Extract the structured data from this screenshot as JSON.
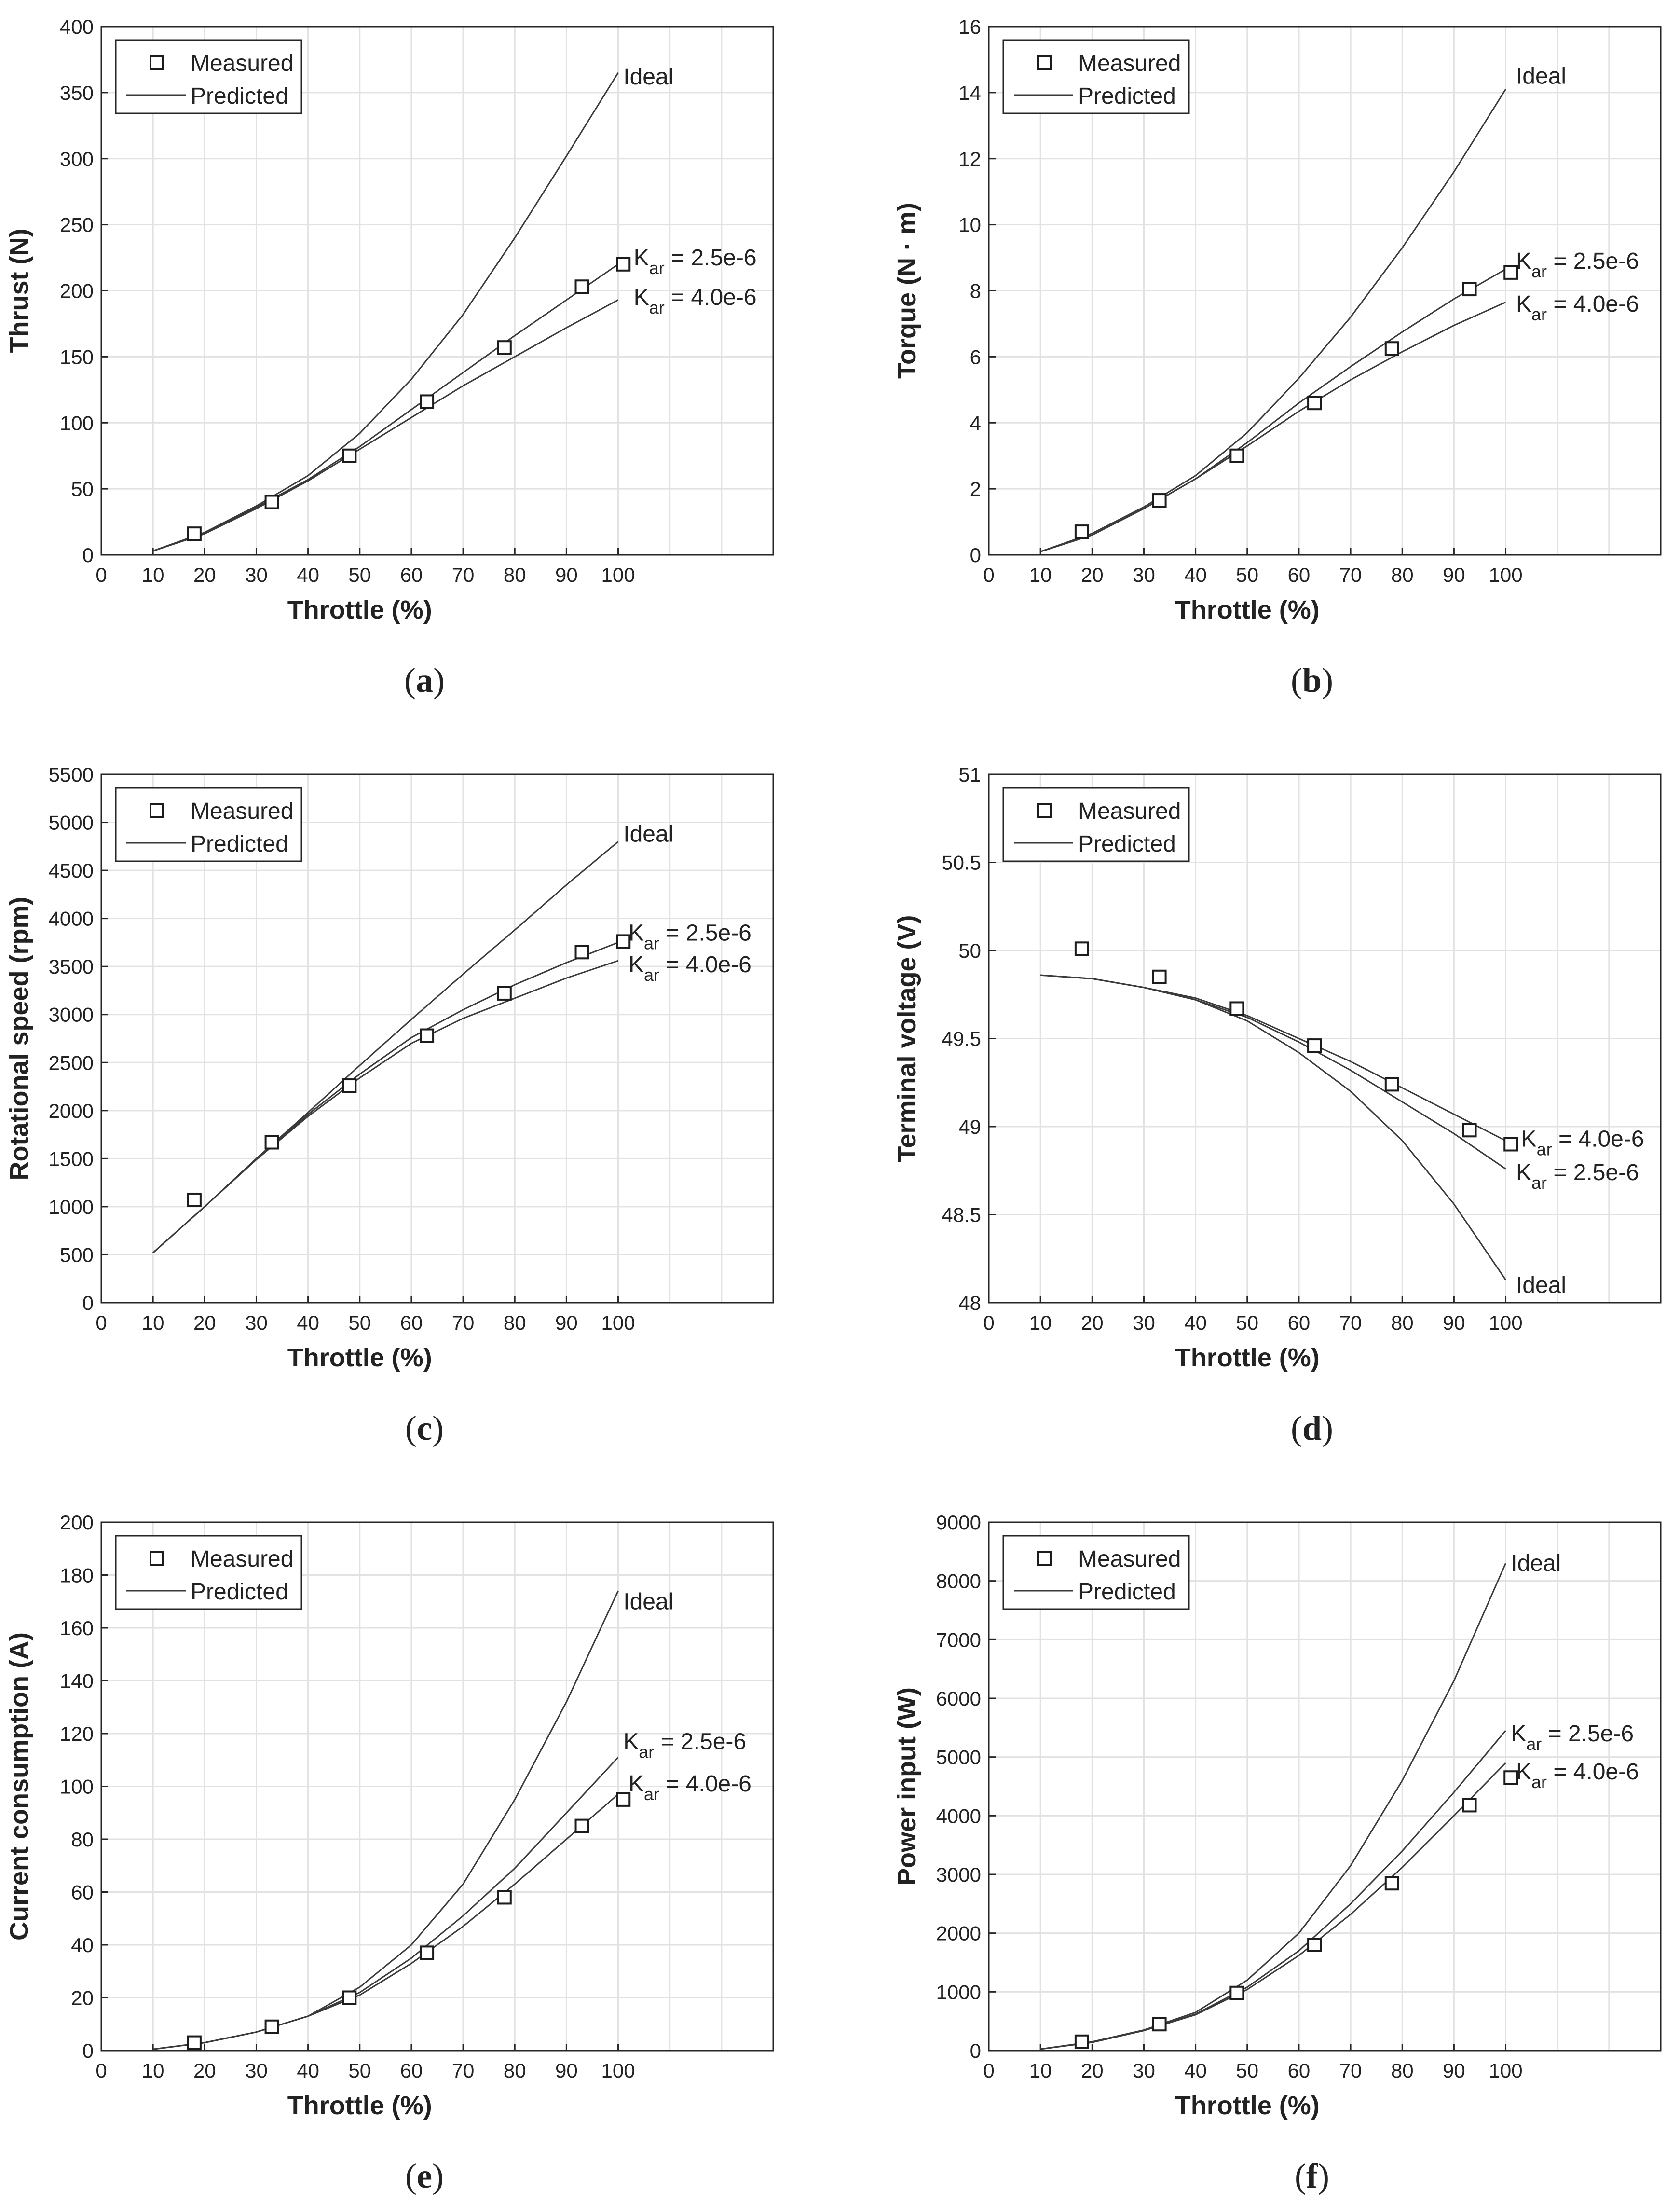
{
  "colors": {
    "line": "#3a3a3a",
    "marker": "#1c1c1c",
    "grid": "#e2e2e2",
    "frame": "#262626",
    "text": "#222222"
  },
  "legend": {
    "measured_label": "Measured",
    "predicted_label": "Predicted"
  },
  "chart_data": [
    {
      "id": "a",
      "caption": "a",
      "type": "line",
      "xlabel": "Throttle (%)",
      "ylabel": "Thrust (N)",
      "xlim": [
        0,
        130
      ],
      "ylim": [
        0,
        400
      ],
      "xticks": [
        0,
        10,
        20,
        30,
        40,
        50,
        60,
        70,
        80,
        90,
        100
      ],
      "yticks": [
        0,
        50,
        100,
        150,
        200,
        250,
        300,
        350,
        400
      ],
      "tick_labels": [
        "0",
        "50",
        "100",
        "150",
        "200",
        "250",
        "300",
        "350",
        "400"
      ],
      "measured": {
        "x": [
          18,
          33,
          48,
          63,
          78,
          93,
          101
        ],
        "y": [
          16,
          40,
          75,
          116,
          157,
          203,
          220
        ]
      },
      "series": [
        {
          "name": "Ideal",
          "x": [
            10,
            20,
            30,
            40,
            50,
            60,
            70,
            80,
            90,
            100
          ],
          "y": [
            3,
            17,
            37,
            60,
            92,
            133,
            182,
            240,
            302,
            365
          ]
        },
        {
          "name": "Kar = 2.5e-6",
          "x": [
            10,
            20,
            30,
            40,
            50,
            60,
            70,
            80,
            90,
            100
          ],
          "y": [
            3,
            16,
            36,
            57,
            82,
            110,
            138,
            166,
            193,
            220
          ]
        },
        {
          "name": "Kar = 4.0e-6",
          "x": [
            10,
            20,
            30,
            40,
            50,
            60,
            70,
            80,
            90,
            100
          ],
          "y": [
            3,
            16,
            35,
            56,
            80,
            104,
            128,
            150,
            172,
            193
          ]
        }
      ],
      "annotations": [
        {
          "kind": "plain",
          "text": "Ideal",
          "x": 101,
          "y": 362
        },
        {
          "kind": "kar",
          "base": "K",
          "sub": "ar",
          "rest": " = 2.5e-6",
          "x": 103,
          "y": 225
        },
        {
          "kind": "kar",
          "base": "K",
          "sub": "ar",
          "rest": " = 4.0e-6",
          "x": 103,
          "y": 195
        }
      ]
    },
    {
      "id": "b",
      "caption": "b",
      "type": "line",
      "xlabel": "Throttle (%)",
      "ylabel": "Torque (N · m)",
      "xlim": [
        0,
        130
      ],
      "ylim": [
        0,
        16
      ],
      "xticks": [
        0,
        10,
        20,
        30,
        40,
        50,
        60,
        70,
        80,
        90,
        100
      ],
      "yticks": [
        0,
        2,
        4,
        6,
        8,
        10,
        12,
        14,
        16
      ],
      "tick_labels": [
        "0",
        "2",
        "4",
        "6",
        "8",
        "10",
        "12",
        "14",
        "16"
      ],
      "measured": {
        "x": [
          18,
          33,
          48,
          63,
          78,
          93,
          101
        ],
        "y": [
          0.7,
          1.65,
          3.0,
          4.6,
          6.25,
          8.05,
          8.55
        ]
      },
      "series": [
        {
          "name": "Ideal",
          "x": [
            10,
            20,
            30,
            40,
            50,
            60,
            70,
            80,
            90,
            100
          ],
          "y": [
            0.1,
            0.65,
            1.45,
            2.4,
            3.7,
            5.35,
            7.2,
            9.3,
            11.6,
            14.1
          ]
        },
        {
          "name": "Kar = 2.5e-6",
          "x": [
            10,
            20,
            30,
            40,
            50,
            60,
            70,
            80,
            90,
            100
          ],
          "y": [
            0.1,
            0.6,
            1.4,
            2.3,
            3.4,
            4.6,
            5.7,
            6.75,
            7.75,
            8.65
          ]
        },
        {
          "name": "Kar = 4.0e-6",
          "x": [
            10,
            20,
            30,
            40,
            50,
            60,
            70,
            80,
            90,
            100
          ],
          "y": [
            0.1,
            0.6,
            1.4,
            2.3,
            3.3,
            4.35,
            5.3,
            6.15,
            6.95,
            7.65
          ]
        }
      ],
      "annotations": [
        {
          "kind": "plain",
          "text": "Ideal",
          "x": 102,
          "y": 14.5
        },
        {
          "kind": "kar",
          "base": "K",
          "sub": "ar",
          "rest": " = 2.5e-6",
          "x": 102,
          "y": 8.9
        },
        {
          "kind": "kar",
          "base": "K",
          "sub": "ar",
          "rest": " = 4.0e-6",
          "x": 102,
          "y": 7.6
        }
      ]
    },
    {
      "id": "c",
      "caption": "c",
      "type": "line",
      "xlabel": "Throttle (%)",
      "ylabel": "Rotational speed (rpm)",
      "xlim": [
        0,
        130
      ],
      "ylim": [
        0,
        5500
      ],
      "xticks": [
        0,
        10,
        20,
        30,
        40,
        50,
        60,
        70,
        80,
        90,
        100
      ],
      "yticks": [
        0,
        500,
        1000,
        1500,
        2000,
        2500,
        3000,
        3500,
        4000,
        4500,
        5000,
        5500
      ],
      "tick_labels": [
        "0",
        "500",
        "1000",
        "1500",
        "2000",
        "2500",
        "3000",
        "3500",
        "4000",
        "4500",
        "5000",
        "5500"
      ],
      "measured": {
        "x": [
          18,
          33,
          48,
          63,
          78,
          93,
          101
        ],
        "y": [
          1070,
          1670,
          2260,
          2780,
          3220,
          3650,
          3760
        ]
      },
      "series": [
        {
          "name": "Ideal",
          "x": [
            10,
            20,
            30,
            40,
            50,
            60,
            70,
            80,
            90,
            100
          ],
          "y": [
            520,
            1000,
            1500,
            1980,
            2470,
            2950,
            3420,
            3880,
            4350,
            4800
          ]
        },
        {
          "name": "Kar = 2.5e-6",
          "x": [
            10,
            20,
            30,
            40,
            50,
            60,
            70,
            80,
            90,
            100
          ],
          "y": [
            520,
            1000,
            1500,
            1960,
            2380,
            2760,
            3050,
            3310,
            3540,
            3750
          ]
        },
        {
          "name": "Kar = 4.0e-6",
          "x": [
            10,
            20,
            30,
            40,
            50,
            60,
            70,
            80,
            90,
            100
          ],
          "y": [
            520,
            1000,
            1490,
            1940,
            2340,
            2700,
            2960,
            3170,
            3380,
            3560
          ]
        }
      ],
      "annotations": [
        {
          "kind": "plain",
          "text": "Ideal",
          "x": 101,
          "y": 4880
        },
        {
          "kind": "kar",
          "base": "K",
          "sub": "ar",
          "rest": " = 2.5e-6",
          "x": 102,
          "y": 3850
        },
        {
          "kind": "kar",
          "base": "K",
          "sub": "ar",
          "rest": " = 4.0e-6",
          "x": 102,
          "y": 3520
        }
      ]
    },
    {
      "id": "d",
      "caption": "d",
      "type": "line",
      "xlabel": "Throttle (%)",
      "ylabel": "Terminal voltage (V)",
      "xlim": [
        0,
        130
      ],
      "ylim": [
        48,
        51
      ],
      "xticks": [
        0,
        10,
        20,
        30,
        40,
        50,
        60,
        70,
        80,
        90,
        100
      ],
      "yticks": [
        48,
        48.5,
        49,
        49.5,
        50,
        50.5,
        51
      ],
      "tick_labels": [
        "48",
        "48.5",
        "49",
        "49.5",
        "50",
        "50.5",
        "51"
      ],
      "measured": {
        "x": [
          18,
          33,
          48,
          63,
          78,
          93,
          101
        ],
        "y": [
          50.01,
          49.85,
          49.67,
          49.46,
          49.24,
          48.98,
          48.9
        ]
      },
      "series": [
        {
          "name": "Ideal",
          "x": [
            10,
            20,
            30,
            40,
            50,
            60,
            70,
            80,
            90,
            100
          ],
          "y": [
            49.86,
            49.84,
            49.79,
            49.72,
            49.6,
            49.42,
            49.2,
            48.92,
            48.56,
            48.13
          ]
        },
        {
          "name": "Kar = 2.5e-6",
          "x": [
            10,
            20,
            30,
            40,
            50,
            60,
            70,
            80,
            90,
            100
          ],
          "y": [
            49.86,
            49.84,
            49.79,
            49.72,
            49.62,
            49.48,
            49.32,
            49.14,
            48.96,
            48.76
          ]
        },
        {
          "name": "Kar = 4.0e-6",
          "x": [
            10,
            20,
            30,
            40,
            50,
            60,
            70,
            80,
            90,
            100
          ],
          "y": [
            49.86,
            49.84,
            49.79,
            49.73,
            49.63,
            49.5,
            49.37,
            49.22,
            49.07,
            48.92
          ]
        }
      ],
      "annotations": [
        {
          "kind": "kar",
          "base": "K",
          "sub": "ar",
          "rest": " = 4.0e-6",
          "x": 103,
          "y": 48.93
        },
        {
          "kind": "kar",
          "base": "K",
          "sub": "ar",
          "rest": " = 2.5e-6",
          "x": 102,
          "y": 48.74
        },
        {
          "kind": "plain",
          "text": "Ideal",
          "x": 102,
          "y": 48.1
        }
      ]
    },
    {
      "id": "e",
      "caption": "e",
      "type": "line",
      "xlabel": "Throttle (%)",
      "ylabel": "Current consumption (A)",
      "xlim": [
        0,
        130
      ],
      "ylim": [
        0,
        200
      ],
      "xticks": [
        0,
        10,
        20,
        30,
        40,
        50,
        60,
        70,
        80,
        90,
        100
      ],
      "yticks": [
        0,
        20,
        40,
        60,
        80,
        100,
        120,
        140,
        160,
        180,
        200
      ],
      "tick_labels": [
        "0",
        "20",
        "40",
        "60",
        "80",
        "100",
        "120",
        "140",
        "160",
        "180",
        "200"
      ],
      "measured": {
        "x": [
          18,
          33,
          48,
          63,
          78,
          93,
          101
        ],
        "y": [
          3,
          9,
          20,
          37,
          58,
          85,
          95
        ]
      },
      "series": [
        {
          "name": "Ideal",
          "x": [
            10,
            20,
            30,
            40,
            50,
            60,
            70,
            80,
            90,
            100
          ],
          "y": [
            0.5,
            3,
            7,
            13,
            24,
            40,
            63,
            95,
            132,
            174
          ]
        },
        {
          "name": "Kar = 2.5e-6",
          "x": [
            10,
            20,
            30,
            40,
            50,
            60,
            70,
            80,
            90,
            100
          ],
          "y": [
            0.5,
            3,
            7,
            13,
            22,
            35,
            51,
            69,
            90,
            111
          ]
        },
        {
          "name": "Kar = 4.0e-6",
          "x": [
            10,
            20,
            30,
            40,
            50,
            60,
            70,
            80,
            90,
            100
          ],
          "y": [
            0.5,
            3,
            7,
            13,
            21,
            33,
            47,
            63,
            80,
            97
          ]
        }
      ],
      "annotations": [
        {
          "kind": "plain",
          "text": "Ideal",
          "x": 101,
          "y": 170
        },
        {
          "kind": "kar",
          "base": "K",
          "sub": "ar",
          "rest": " = 2.5e-6",
          "x": 101,
          "y": 117
        },
        {
          "kind": "kar",
          "base": "K",
          "sub": "ar",
          "rest": " = 4.0e-6",
          "x": 102,
          "y": 101
        }
      ]
    },
    {
      "id": "f",
      "caption": "f",
      "type": "line",
      "xlabel": "Throttle (%)",
      "ylabel": "Power input (W)",
      "xlim": [
        0,
        130
      ],
      "ylim": [
        0,
        9000
      ],
      "xticks": [
        0,
        10,
        20,
        30,
        40,
        50,
        60,
        70,
        80,
        90,
        100
      ],
      "yticks": [
        0,
        1000,
        2000,
        3000,
        4000,
        5000,
        6000,
        7000,
        8000,
        9000
      ],
      "tick_labels": [
        "0",
        "1000",
        "2000",
        "3000",
        "4000",
        "5000",
        "6000",
        "7000",
        "8000",
        "9000"
      ],
      "measured": {
        "x": [
          18,
          33,
          48,
          63,
          78,
          93,
          101
        ],
        "y": [
          150,
          450,
          980,
          1800,
          2850,
          4180,
          4650
        ]
      },
      "series": [
        {
          "name": "Ideal",
          "x": [
            10,
            20,
            30,
            40,
            50,
            60,
            70,
            80,
            90,
            100
          ],
          "y": [
            25,
            150,
            350,
            650,
            1200,
            2000,
            3150,
            4600,
            6300,
            8300
          ]
        },
        {
          "name": "Kar = 2.5e-6",
          "x": [
            10,
            20,
            30,
            40,
            50,
            60,
            70,
            80,
            90,
            100
          ],
          "y": [
            25,
            140,
            340,
            620,
            1080,
            1700,
            2500,
            3400,
            4400,
            5450
          ]
        },
        {
          "name": "Kar = 4.0e-6",
          "x": [
            10,
            20,
            30,
            40,
            50,
            60,
            70,
            80,
            90,
            100
          ],
          "y": [
            25,
            140,
            340,
            610,
            1040,
            1620,
            2320,
            3120,
            4000,
            4900
          ]
        }
      ],
      "annotations": [
        {
          "kind": "plain",
          "text": "Ideal",
          "x": 101,
          "y": 8300
        },
        {
          "kind": "kar",
          "base": "K",
          "sub": "ar",
          "rest": " = 2.5e-6",
          "x": 101,
          "y": 5400
        },
        {
          "kind": "kar",
          "base": "K",
          "sub": "ar",
          "rest": " = 4.0e-6",
          "x": 102,
          "y": 4750
        }
      ]
    }
  ]
}
